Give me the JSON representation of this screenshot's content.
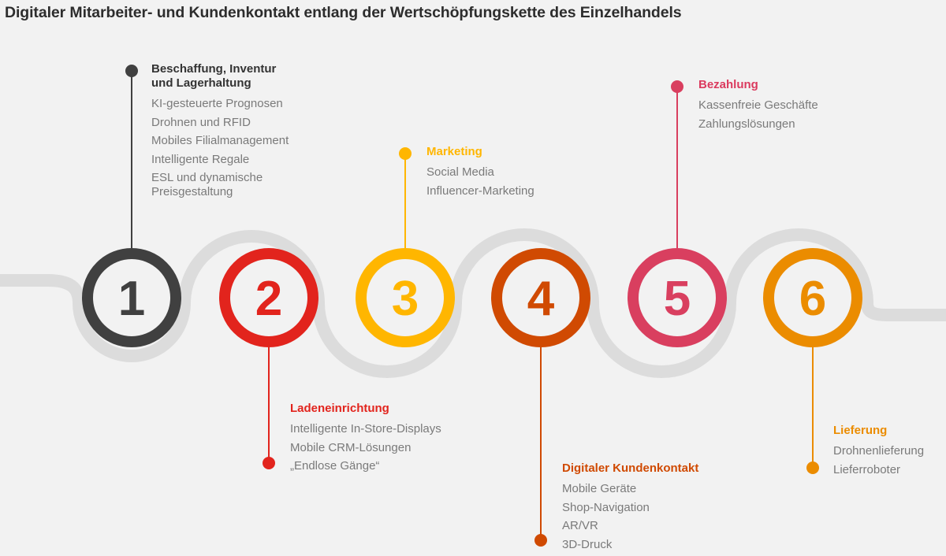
{
  "title": "Digitaler Mitarbeiter- und Kundenkontakt entlang der Wertschöpfungskette des Einzelhandels",
  "track_color": "#dcdcdc",
  "steps": [
    {
      "number": "1",
      "color": "#404040",
      "heading": "Beschaffung, Inventur\nund Lagerhaltung",
      "items": [
        "KI-gesteuerte Prognosen",
        "Drohnen und RFID",
        "Mobiles Filialmanagement",
        "Intelligente Regale",
        "ESL und dynamische\nPreisgestaltung"
      ]
    },
    {
      "number": "2",
      "color": "#e2241d",
      "heading": "Ladeneinrichtung",
      "items": [
        "Intelligente In-Store-Displays",
        "Mobile CRM-Lösungen",
        "„Endlose Gänge“"
      ]
    },
    {
      "number": "3",
      "color": "#ffb600",
      "heading": "Marketing",
      "items": [
        "Social Media",
        "Influencer-Marketing"
      ]
    },
    {
      "number": "4",
      "color": "#d04a02",
      "heading": "Digitaler Kundenkontakt",
      "items": [
        "Mobile Geräte",
        "Shop-Navigation",
        "AR/VR",
        "3D-Druck"
      ]
    },
    {
      "number": "5",
      "color": "#e0301e",
      "heading": "Bezahlung",
      "items": [
        "Kassenfreie Geschäfte",
        "Zahlungslösungen"
      ]
    },
    {
      "number": "6",
      "color": "#eb8c00",
      "heading": "Lieferung",
      "items": [
        "Drohnenlieferung",
        "Lieferroboter"
      ]
    }
  ],
  "colors": {
    "step5_text": "#db3a5e",
    "step5_ring": "#d93f5f",
    "step1_heading": "#333333"
  }
}
